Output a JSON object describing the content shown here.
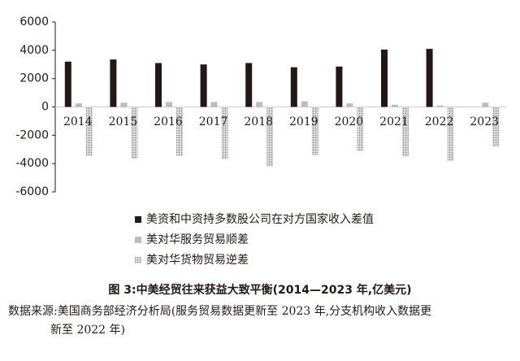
{
  "chart_data": {
    "type": "bar",
    "categories": [
      "2014",
      "2015",
      "2016",
      "2017",
      "2018",
      "2019",
      "2020",
      "2021",
      "2022",
      "2023"
    ],
    "series": [
      {
        "name": "美资和中资持多数股公司在对方国家收入差值",
        "color": "#231815",
        "values": [
          3200,
          3350,
          3100,
          3000,
          3100,
          2800,
          2850,
          4050,
          4100,
          null
        ]
      },
      {
        "name": "美对华服务贸易顺差",
        "color": "#bdbdbd",
        "values": [
          250,
          300,
          350,
          350,
          350,
          400,
          250,
          150,
          100,
          300
        ]
      },
      {
        "name": "美对华货物贸易逆差",
        "color": "#8c8c8c",
        "values": [
          -3450,
          -3650,
          -3450,
          -3700,
          -4200,
          -3400,
          -3100,
          -3500,
          -3800,
          -2800
        ]
      }
    ],
    "ylim": [
      -6000,
      6000
    ],
    "yticks": [
      -6000,
      -4000,
      -2000,
      0,
      2000,
      4000,
      6000
    ],
    "caption": "图 3:中美经贸往来获益大致平衡(2014—2023 年,亿美元)",
    "source": [
      "数据来源:美国商务部经济分析局(服务贸易数据更新至 2023 年,分支机构收入数据更",
      "新至 2022 年)"
    ]
  }
}
